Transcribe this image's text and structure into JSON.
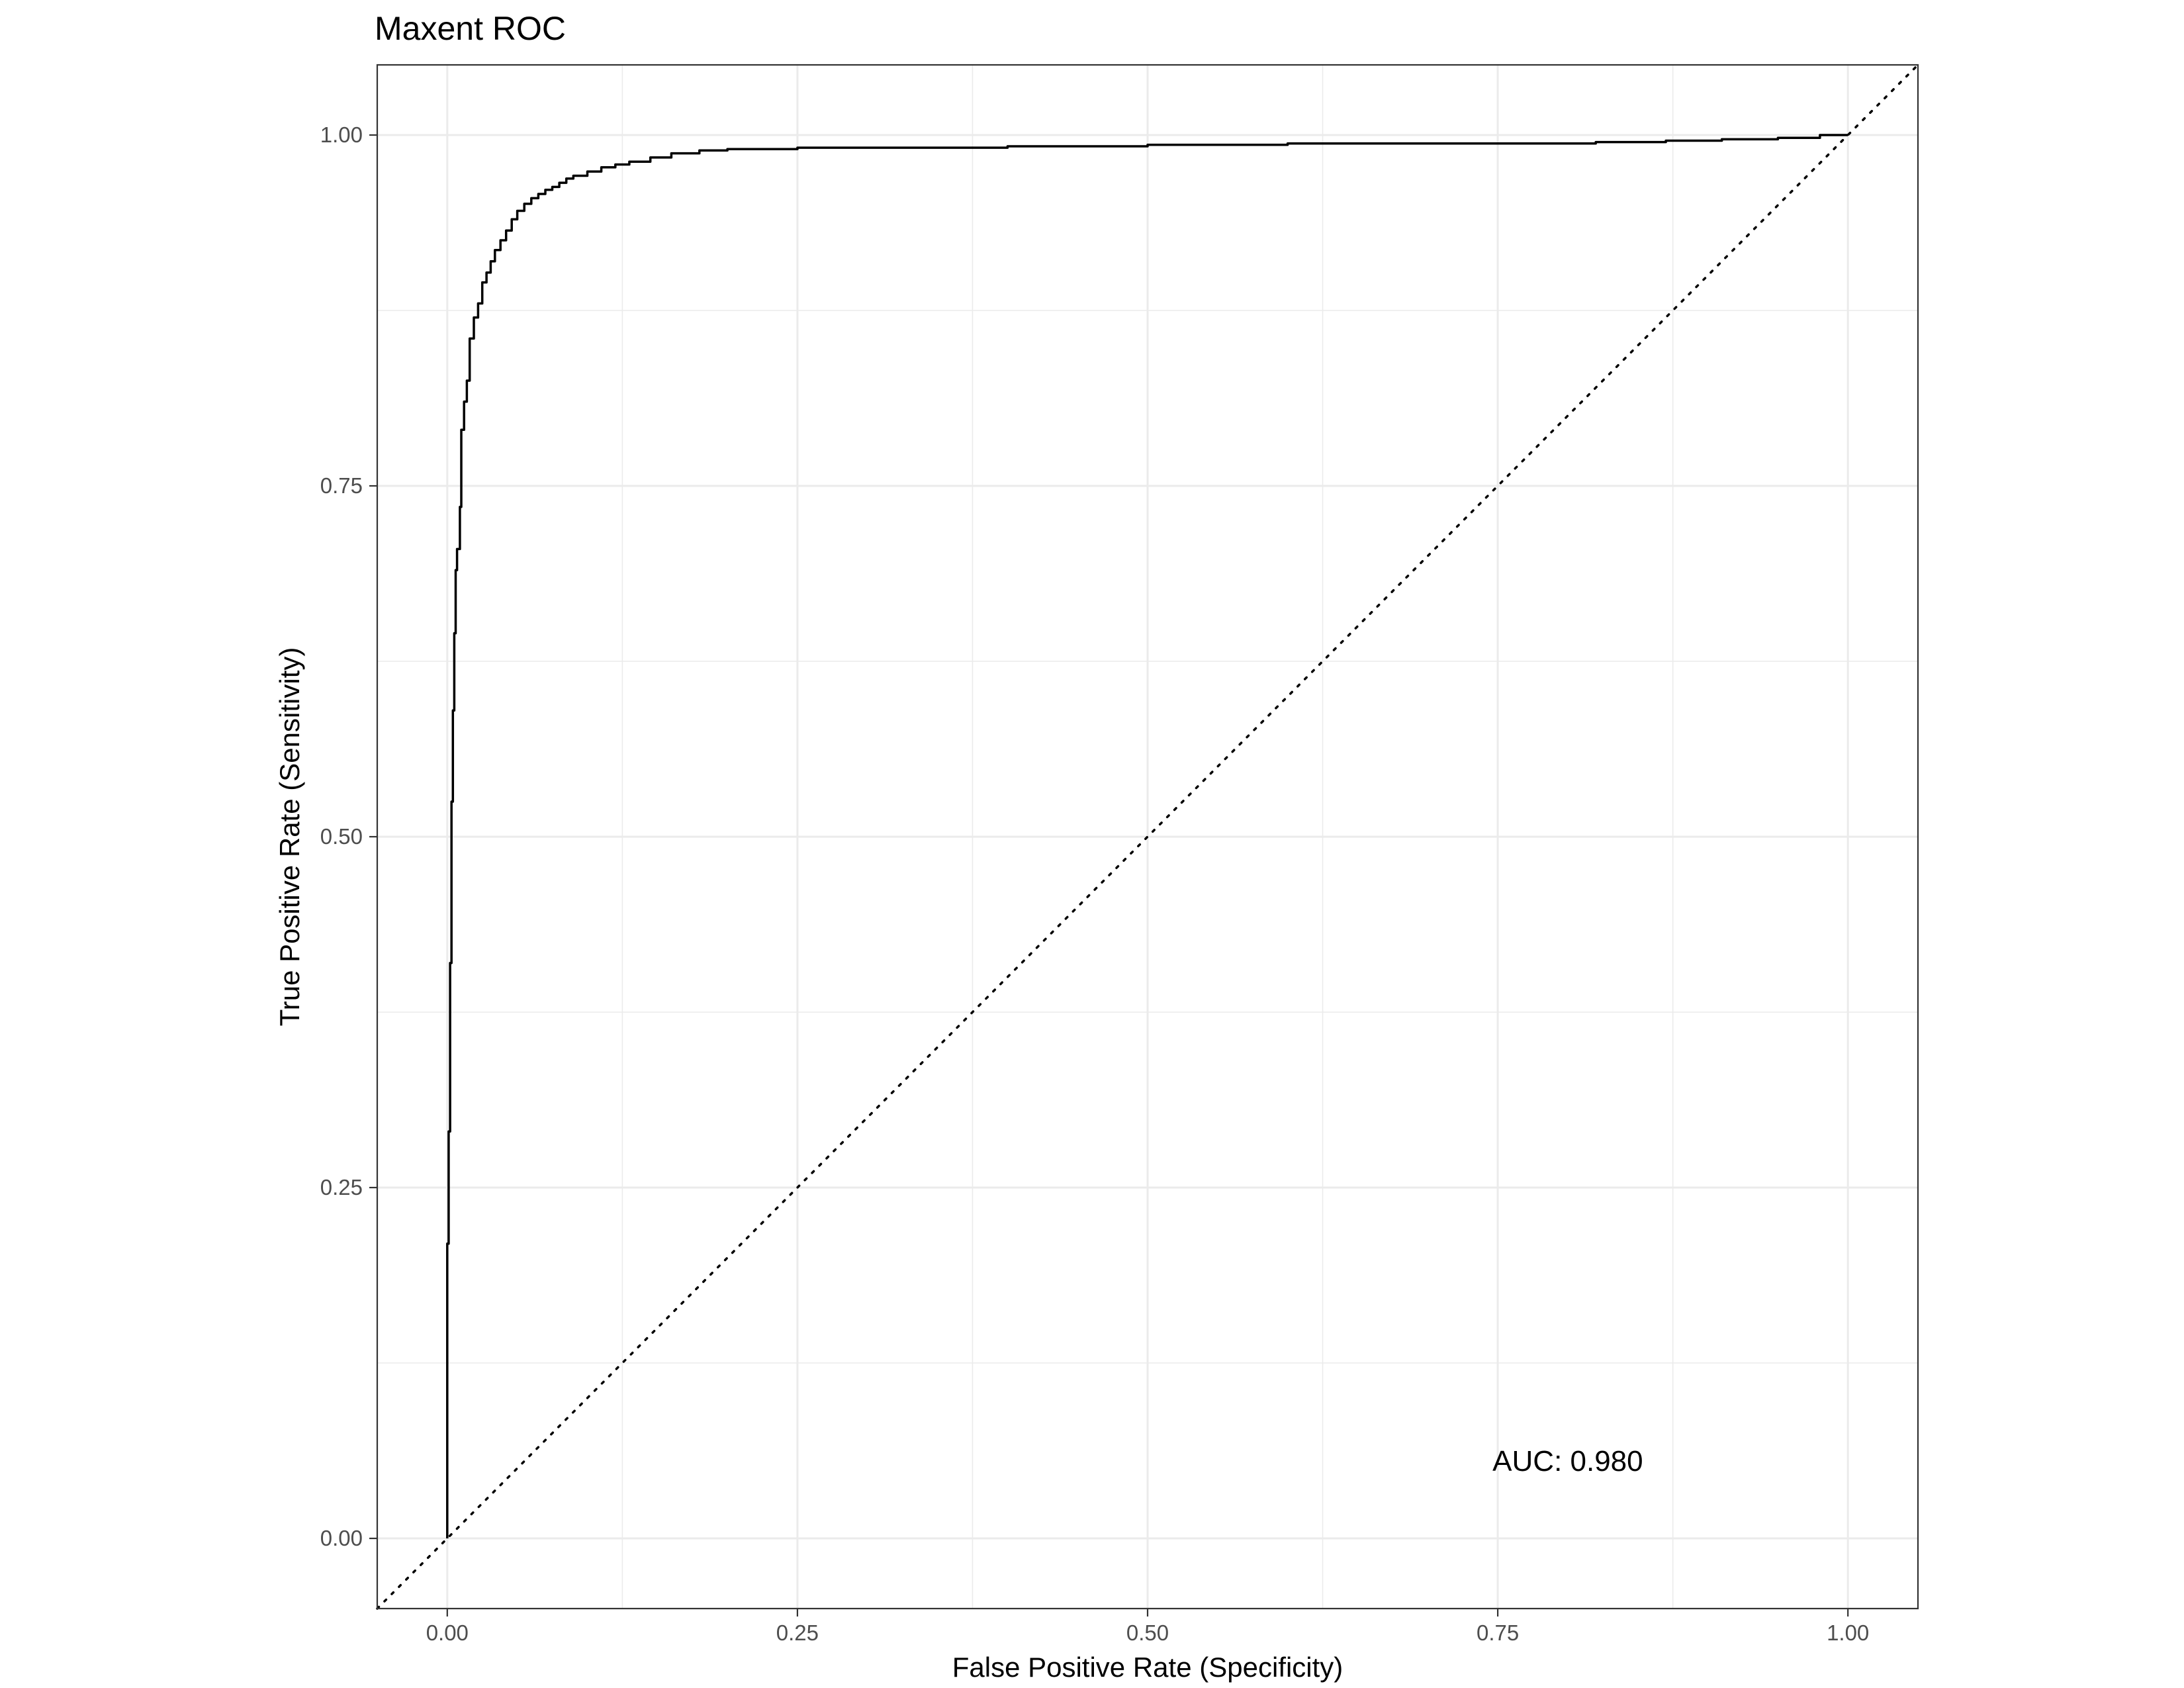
{
  "chart_data": {
    "type": "line",
    "title": "Maxent ROC",
    "xlabel": "False Positive Rate (Specificity)",
    "ylabel": "True Positive Rate (Sensitivity)",
    "xlim": [
      -0.05,
      1.05
    ],
    "ylim": [
      -0.05,
      1.05
    ],
    "x_ticks": [
      0.0,
      0.25,
      0.5,
      0.75,
      1.0
    ],
    "x_tick_labels": [
      "0.00",
      "0.25",
      "0.50",
      "0.75",
      "1.00"
    ],
    "y_ticks": [
      0.0,
      0.25,
      0.5,
      0.75,
      1.0
    ],
    "y_tick_labels": [
      "0.00",
      "0.25",
      "0.50",
      "0.75",
      "1.00"
    ],
    "grid": true,
    "colors": {
      "curve": "#000000",
      "grid": "#ebebeb",
      "border": "#333333"
    },
    "annotation": {
      "text": "AUC: 0.980",
      "x": 0.8,
      "y": 0.048
    },
    "reference_line": {
      "x": [
        0,
        1
      ],
      "y": [
        0,
        1
      ],
      "style": "dotted"
    },
    "series": [
      {
        "x": [
          0.0,
          0.0,
          0.001,
          0.001,
          0.002,
          0.002,
          0.003,
          0.003,
          0.004,
          0.004,
          0.005,
          0.005,
          0.006,
          0.006,
          0.007,
          0.007,
          0.009,
          0.009,
          0.01,
          0.01,
          0.012,
          0.012,
          0.014,
          0.014,
          0.016,
          0.016,
          0.019,
          0.019,
          0.022,
          0.022,
          0.025,
          0.025,
          0.028,
          0.028,
          0.031,
          0.031,
          0.034,
          0.034,
          0.038,
          0.038,
          0.042,
          0.042,
          0.046,
          0.046,
          0.05,
          0.05,
          0.055,
          0.055,
          0.06,
          0.06,
          0.065,
          0.065,
          0.07,
          0.07,
          0.075,
          0.075,
          0.08,
          0.08,
          0.085,
          0.085,
          0.09,
          0.09,
          0.1,
          0.1,
          0.11,
          0.11,
          0.12,
          0.12,
          0.13,
          0.13,
          0.145,
          0.145,
          0.16,
          0.16,
          0.18,
          0.18,
          0.2,
          0.2,
          0.25,
          0.25,
          0.4,
          0.4,
          0.5,
          0.5,
          0.6,
          0.6,
          0.82,
          0.82,
          0.87,
          0.87,
          0.91,
          0.91,
          0.95,
          0.95,
          0.98,
          0.98,
          1.0
        ],
        "y": [
          0.0,
          0.21,
          0.21,
          0.29,
          0.29,
          0.41,
          0.41,
          0.525,
          0.525,
          0.59,
          0.59,
          0.645,
          0.645,
          0.69,
          0.69,
          0.705,
          0.705,
          0.735,
          0.735,
          0.79,
          0.79,
          0.81,
          0.81,
          0.825,
          0.825,
          0.855,
          0.855,
          0.87,
          0.87,
          0.88,
          0.88,
          0.895,
          0.895,
          0.902,
          0.902,
          0.91,
          0.91,
          0.918,
          0.918,
          0.925,
          0.925,
          0.932,
          0.932,
          0.94,
          0.94,
          0.946,
          0.946,
          0.951,
          0.951,
          0.955,
          0.955,
          0.958,
          0.958,
          0.961,
          0.961,
          0.963,
          0.963,
          0.966,
          0.966,
          0.969,
          0.969,
          0.971,
          0.971,
          0.974,
          0.974,
          0.977,
          0.977,
          0.979,
          0.979,
          0.981,
          0.981,
          0.984,
          0.984,
          0.987,
          0.987,
          0.989,
          0.989,
          0.99,
          0.99,
          0.991,
          0.991,
          0.992,
          0.992,
          0.993,
          0.993,
          0.994,
          0.994,
          0.995,
          0.995,
          0.996,
          0.996,
          0.997,
          0.997,
          0.998,
          0.998,
          1.0,
          1.0
        ]
      }
    ]
  }
}
